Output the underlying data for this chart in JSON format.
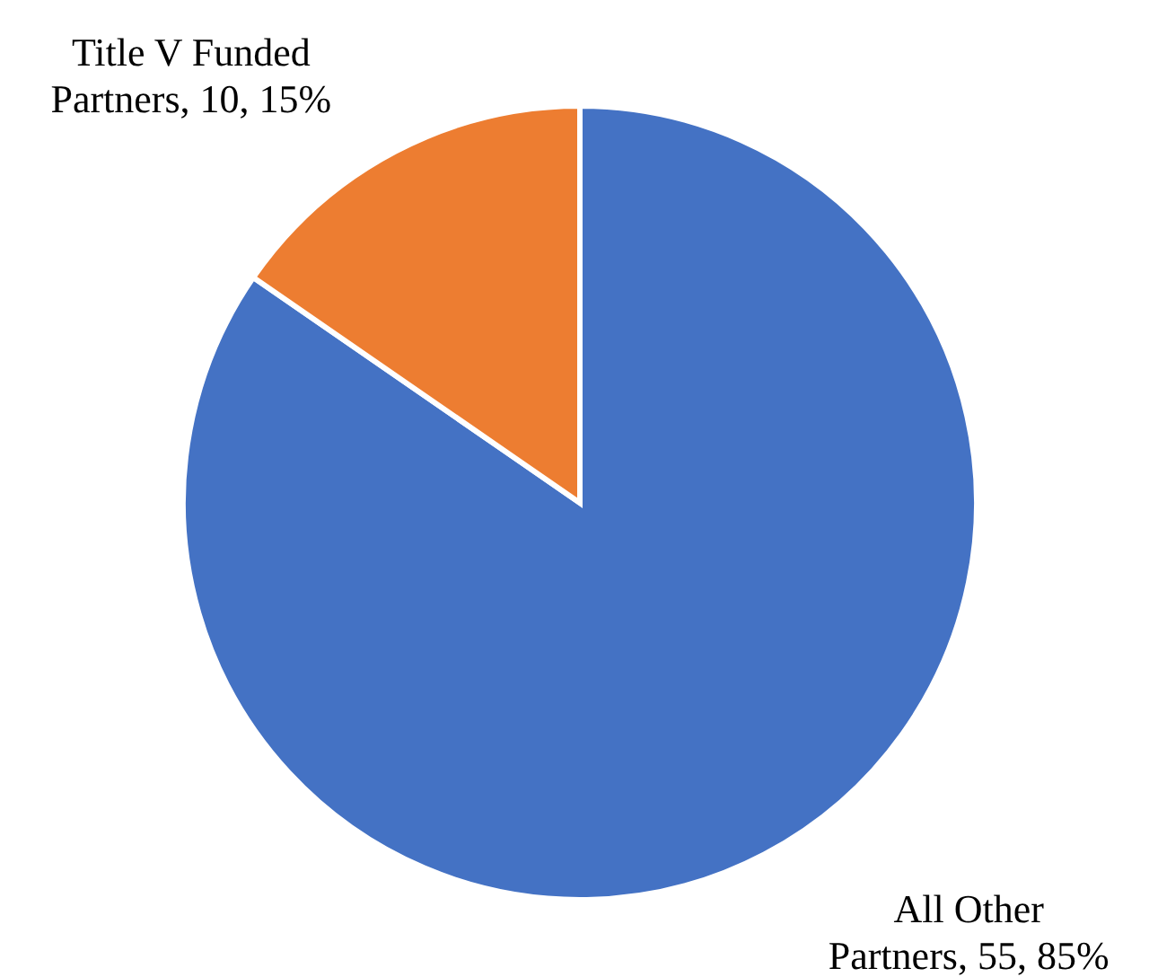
{
  "chart_data": {
    "type": "pie",
    "categories": [
      "All Other Partners",
      "Title V Funded Partners"
    ],
    "values": [
      55,
      10
    ],
    "colors": [
      "#4472c4",
      "#ed7d31"
    ],
    "value_labels": [
      "55, 85%",
      "10, 15%"
    ]
  }
}
